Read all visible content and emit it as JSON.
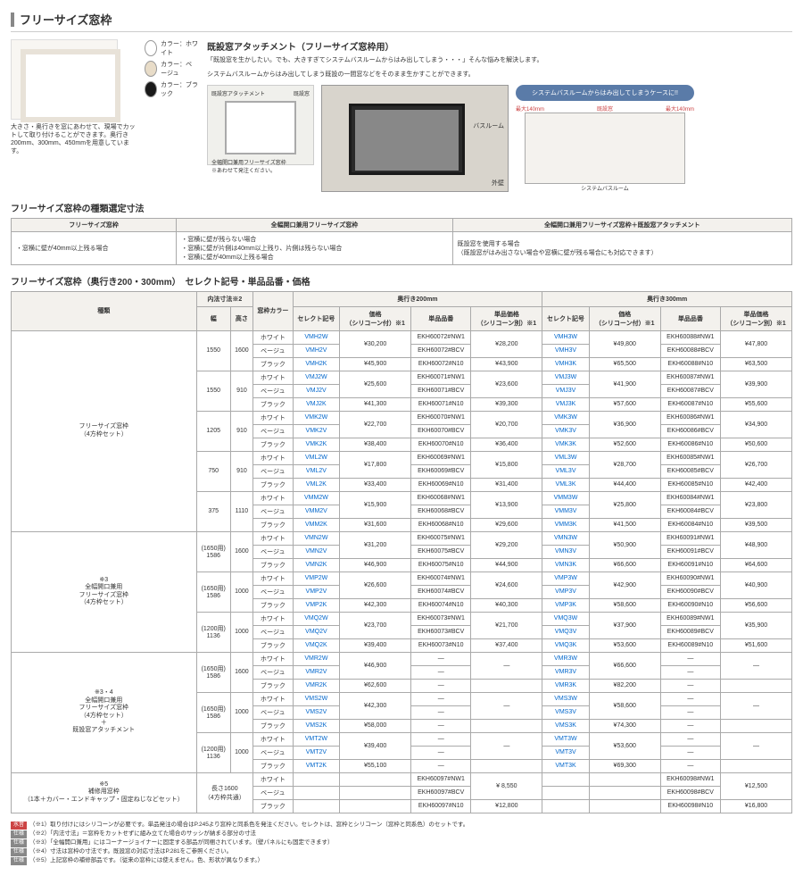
{
  "title": "フリーサイズ窓枠",
  "intro_left_text": "大きさ・奥行きを窓にあわせて、現場でカットして取り付けることができます。奥行き200mm、300mm、450mmを用意しています。",
  "swatches": [
    {
      "label": "カラー：ホワイト",
      "color": "#ffffff"
    },
    {
      "label": "カラー：ベージュ",
      "color": "#e8dcc8"
    },
    {
      "label": "カラー：ブラック",
      "color": "#1a1a1a"
    }
  ],
  "attach_title": "既設窓アタッチメント（フリーサイズ窓枠用）",
  "attach_text1": "「既設窓を生かしたい。でも、大きすぎてシステムバスルームからはみ出してしまう・・・」そんな悩みを解決します。",
  "attach_text2": "システムバスルームからはみ出してしまう既設の一間窓などをそのまま生かすことができます。",
  "diagram_labels": {
    "a": "既設窓アタッチメント",
    "b": "既設窓",
    "c": "全幅開口兼用フリーサイズ窓枠",
    "d": "※あわせて発注ください。"
  },
  "photo_labels": {
    "bath": "バスルーム",
    "wall": "外壁"
  },
  "callout_bubble": "システムバスルームからはみ出してしまうケースに!!",
  "callout_labels": {
    "l": "最大140mm",
    "r": "最大140mm",
    "m": "既設窓",
    "s": "システムバスルーム"
  },
  "sec1_title": "フリーサイズ窓枠の種類選定寸法",
  "t1": {
    "headers": [
      "フリーサイズ窓枠",
      "全幅開口兼用フリーサイズ窓枠",
      "全幅開口兼用フリーサイズ窓枠＋既設窓アタッチメント"
    ],
    "row": [
      "・窓横に壁が40mm以上残る場合",
      "・窓横に壁が残らない場合\n・窓横に壁が片側は40mm以上残り、片側は残らない場合\n・窓横に壁が40mm以上残る場合",
      "既設窓を使用する場合\n（既設窓がはみ出さない場合や窓横に壁が残る場合にも対応できます）"
    ]
  },
  "sec2_title": "フリーサイズ窓枠（奥行き200・300mm）　セレクト記号・単品品番・価格",
  "main_headers": {
    "type": "種類",
    "inner": "内法寸法※2",
    "width": "幅",
    "height": "高さ",
    "color": "窓枠カラー",
    "d200": "奥行き200mm",
    "d300": "奥行き300mm",
    "select": "セレクト記号",
    "price_si": "価格\n（シリコーン付）※1",
    "part": "単品品番",
    "part_price": "単品価格\n（シリコーン別）※1"
  },
  "groups": [
    {
      "label": "フリーサイズ窓枠\n（4方枠セット）",
      "sizes": [
        {
          "w": "1550",
          "h": "1600",
          "rows": [
            {
              "color": "ホワイト",
              "s200": "VMH2W",
              "p200": "¥30,200",
              "pn200": "EKH60072#NW1",
              "pp200": "¥28,200",
              "s300": "VMH3W",
              "p300": "¥49,800",
              "pn300": "EKH60088#NW1",
              "pp300": "¥47,800"
            },
            {
              "color": "ベージュ",
              "s200": "VMH2V",
              "p200": "",
              "pn200": "EKH60072#BCV",
              "pp200": "",
              "s300": "VMH3V",
              "p300": "",
              "pn300": "EKH60088#BCV",
              "pp300": ""
            },
            {
              "color": "ブラック",
              "s200": "VMH2K",
              "p200": "¥45,900",
              "pn200": "EKH60072#N10",
              "pp200": "¥43,900",
              "s300": "VMH3K",
              "p300": "¥65,500",
              "pn300": "EKH60088#N10",
              "pp300": "¥63,500"
            }
          ]
        },
        {
          "w": "1550",
          "h": "910",
          "rows": [
            {
              "color": "ホワイト",
              "s200": "VMJ2W",
              "p200": "¥25,600",
              "pn200": "EKH60071#NW1",
              "pp200": "¥23,600",
              "s300": "VMJ3W",
              "p300": "¥41,900",
              "pn300": "EKH60087#NW1",
              "pp300": "¥39,900"
            },
            {
              "color": "ベージュ",
              "s200": "VMJ2V",
              "p200": "",
              "pn200": "EKH60071#BCV",
              "pp200": "",
              "s300": "VMJ3V",
              "p300": "",
              "pn300": "EKH60087#BCV",
              "pp300": ""
            },
            {
              "color": "ブラック",
              "s200": "VMJ2K",
              "p200": "¥41,300",
              "pn200": "EKH60071#N10",
              "pp200": "¥39,300",
              "s300": "VMJ3K",
              "p300": "¥57,600",
              "pn300": "EKH60087#N10",
              "pp300": "¥55,600"
            }
          ]
        },
        {
          "w": "1205",
          "h": "910",
          "rows": [
            {
              "color": "ホワイト",
              "s200": "VMK2W",
              "p200": "¥22,700",
              "pn200": "EKH60070#NW1",
              "pp200": "¥20,700",
              "s300": "VMK3W",
              "p300": "¥36,900",
              "pn300": "EKH60086#NW1",
              "pp300": "¥34,900"
            },
            {
              "color": "ベージュ",
              "s200": "VMK2V",
              "p200": "",
              "pn200": "EKH60070#BCV",
              "pp200": "",
              "s300": "VMK3V",
              "p300": "",
              "pn300": "EKH60086#BCV",
              "pp300": ""
            },
            {
              "color": "ブラック",
              "s200": "VMK2K",
              "p200": "¥38,400",
              "pn200": "EKH60070#N10",
              "pp200": "¥36,400",
              "s300": "VMK3K",
              "p300": "¥52,600",
              "pn300": "EKH60086#N10",
              "pp300": "¥50,600"
            }
          ]
        },
        {
          "w": "750",
          "h": "910",
          "rows": [
            {
              "color": "ホワイト",
              "s200": "VML2W",
              "p200": "¥17,800",
              "pn200": "EKH60069#NW1",
              "pp200": "¥15,800",
              "s300": "VML3W",
              "p300": "¥28,700",
              "pn300": "EKH60085#NW1",
              "pp300": "¥26,700"
            },
            {
              "color": "ベージュ",
              "s200": "VML2V",
              "p200": "",
              "pn200": "EKH60069#BCV",
              "pp200": "",
              "s300": "VML3V",
              "p300": "",
              "pn300": "EKH60085#BCV",
              "pp300": ""
            },
            {
              "color": "ブラック",
              "s200": "VML2K",
              "p200": "¥33,400",
              "pn200": "EKH60069#N10",
              "pp200": "¥31,400",
              "s300": "VML3K",
              "p300": "¥44,400",
              "pn300": "EKH60085#N10",
              "pp300": "¥42,400"
            }
          ]
        },
        {
          "w": "375",
          "h": "1110",
          "rows": [
            {
              "color": "ホワイト",
              "s200": "VMM2W",
              "p200": "¥15,900",
              "pn200": "EKH60068#NW1",
              "pp200": "¥13,900",
              "s300": "VMM3W",
              "p300": "¥25,800",
              "pn300": "EKH60084#NW1",
              "pp300": "¥23,800"
            },
            {
              "color": "ベージュ",
              "s200": "VMM2V",
              "p200": "",
              "pn200": "EKH60068#BCV",
              "pp200": "",
              "s300": "VMM3V",
              "p300": "",
              "pn300": "EKH60084#BCV",
              "pp300": ""
            },
            {
              "color": "ブラック",
              "s200": "VMM2K",
              "p200": "¥31,600",
              "pn200": "EKH60068#N10",
              "pp200": "¥29,600",
              "s300": "VMM3K",
              "p300": "¥41,500",
              "pn300": "EKH60084#N10",
              "pp300": "¥39,500"
            }
          ]
        }
      ]
    },
    {
      "label": "※3\n全幅開口兼用\nフリーサイズ窓枠\n（4方枠セット）",
      "sizes": [
        {
          "w": "(1650用)\n1586",
          "h": "1600",
          "rows": [
            {
              "color": "ホワイト",
              "s200": "VMN2W",
              "p200": "¥31,200",
              "pn200": "EKH60075#NW1",
              "pp200": "¥29,200",
              "s300": "VMN3W",
              "p300": "¥50,900",
              "pn300": "EKH60091#NW1",
              "pp300": "¥48,900"
            },
            {
              "color": "ベージュ",
              "s200": "VMN2V",
              "p200": "",
              "pn200": "EKH60075#BCV",
              "pp200": "",
              "s300": "VMN3V",
              "p300": "",
              "pn300": "EKH60091#BCV",
              "pp300": ""
            },
            {
              "color": "ブラック",
              "s200": "VMN2K",
              "p200": "¥46,900",
              "pn200": "EKH60075#N10",
              "pp200": "¥44,900",
              "s300": "VMN3K",
              "p300": "¥66,600",
              "pn300": "EKH60091#N10",
              "pp300": "¥64,600"
            }
          ]
        },
        {
          "w": "(1650用)\n1586",
          "h": "1000",
          "rows": [
            {
              "color": "ホワイト",
              "s200": "VMP2W",
              "p200": "¥26,600",
              "pn200": "EKH60074#NW1",
              "pp200": "¥24,600",
              "s300": "VMP3W",
              "p300": "¥42,900",
              "pn300": "EKH60090#NW1",
              "pp300": "¥40,900"
            },
            {
              "color": "ベージュ",
              "s200": "VMP2V",
              "p200": "",
              "pn200": "EKH60074#BCV",
              "pp200": "",
              "s300": "VMP3V",
              "p300": "",
              "pn300": "EKH60090#BCV",
              "pp300": ""
            },
            {
              "color": "ブラック",
              "s200": "VMP2K",
              "p200": "¥42,300",
              "pn200": "EKH60074#N10",
              "pp200": "¥40,300",
              "s300": "VMP3K",
              "p300": "¥58,600",
              "pn300": "EKH60090#N10",
              "pp300": "¥56,600"
            }
          ]
        },
        {
          "w": "(1200用)\n1136",
          "h": "1000",
          "rows": [
            {
              "color": "ホワイト",
              "s200": "VMQ2W",
              "p200": "¥23,700",
              "pn200": "EKH60073#NW1",
              "pp200": "¥21,700",
              "s300": "VMQ3W",
              "p300": "¥37,900",
              "pn300": "EKH60089#NW1",
              "pp300": "¥35,900"
            },
            {
              "color": "ベージュ",
              "s200": "VMQ2V",
              "p200": "",
              "pn200": "EKH60073#BCV",
              "pp200": "",
              "s300": "VMQ3V",
              "p300": "",
              "pn300": "EKH60089#BCV",
              "pp300": ""
            },
            {
              "color": "ブラック",
              "s200": "VMQ2K",
              "p200": "¥39,400",
              "pn200": "EKH60073#N10",
              "pp200": "¥37,400",
              "s300": "VMQ3K",
              "p300": "¥53,600",
              "pn300": "EKH60089#N10",
              "pp300": "¥51,600"
            }
          ]
        }
      ]
    },
    {
      "label": "※3・4\n全幅開口兼用\nフリーサイズ窓枠\n（4方枠セット）\n＋\n既設窓アタッチメント",
      "sizes": [
        {
          "w": "(1650用)\n1586",
          "h": "1600",
          "rows": [
            {
              "color": "ホワイト",
              "s200": "VMR2W",
              "p200": "¥46,900",
              "pn200": "—",
              "pp200": "—",
              "s300": "VMR3W",
              "p300": "¥66,600",
              "pn300": "—",
              "pp300": "—"
            },
            {
              "color": "ベージュ",
              "s200": "VMR2V",
              "p200": "",
              "pn200": "",
              "pp200": "",
              "s300": "VMR3V",
              "p300": "",
              "pn300": "",
              "pp300": ""
            },
            {
              "color": "ブラック",
              "s200": "VMR2K",
              "p200": "¥62,600",
              "pn200": "",
              "pp200": "",
              "s300": "VMR3K",
              "p300": "¥82,200",
              "pn300": "",
              "pp300": ""
            }
          ]
        },
        {
          "w": "(1650用)\n1586",
          "h": "1000",
          "rows": [
            {
              "color": "ホワイト",
              "s200": "VMS2W",
              "p200": "¥42,300",
              "pn200": "—",
              "pp200": "—",
              "s300": "VMS3W",
              "p300": "¥58,600",
              "pn300": "—",
              "pp300": "—"
            },
            {
              "color": "ベージュ",
              "s200": "VMS2V",
              "p200": "",
              "pn200": "",
              "pp200": "",
              "s300": "VMS3V",
              "p300": "",
              "pn300": "",
              "pp300": ""
            },
            {
              "color": "ブラック",
              "s200": "VMS2K",
              "p200": "¥58,000",
              "pn200": "",
              "pp200": "",
              "s300": "VMS3K",
              "p300": "¥74,300",
              "pn300": "",
              "pp300": ""
            }
          ]
        },
        {
          "w": "(1200用)\n1136",
          "h": "1000",
          "rows": [
            {
              "color": "ホワイト",
              "s200": "VMT2W",
              "p200": "¥39,400",
              "pn200": "—",
              "pp200": "—",
              "s300": "VMT3W",
              "p300": "¥53,600",
              "pn300": "—",
              "pp300": "—"
            },
            {
              "color": "ベージュ",
              "s200": "VMT2V",
              "p200": "",
              "pn200": "",
              "pp200": "",
              "s300": "VMT3V",
              "p300": "",
              "pn300": "",
              "pp300": ""
            },
            {
              "color": "ブラック",
              "s200": "VMT2K",
              "p200": "¥55,100",
              "pn200": "",
              "pp200": "",
              "s300": "VMT3K",
              "p300": "¥69,300",
              "pn300": "",
              "pp300": ""
            }
          ]
        }
      ]
    }
  ],
  "spare": {
    "label": "※5\n補修用窓枠\n（1本＋カバー・エンドキャップ・固定ねじなどセット）",
    "w": "長さ1600\n（4方枠共通）",
    "rows": [
      {
        "color": "ホワイト",
        "pn200": "EKH60097#NW1",
        "pp200": "¥ 8,550",
        "pn300": "EKH60098#NW1",
        "pp300": "¥12,500"
      },
      {
        "color": "ベージュ",
        "pn200": "EKH60097#BCV",
        "pp200": "",
        "pn300": "EKH60098#BCV",
        "pp300": ""
      },
      {
        "color": "ブラック",
        "pn200": "EKH60097#N10",
        "pp200": "¥12,800",
        "pn300": "EKH60098#N10",
        "pp300": "¥16,800"
      }
    ]
  },
  "notes": [
    {
      "tag": "水音",
      "cls": "",
      "text": "（※1）取り付けにはシリコーンが必要です。単品発注の場合はP.245より窓枠と同系色を発注ください。セレクトは、窓枠とシリコーン（窓枠と同系色）のセットです。"
    },
    {
      "tag": "仕様",
      "cls": "g",
      "text": "（※2）「内法寸法」＝窓枠をカットせずに組み立てた場合のサッシが納まる部分の寸法"
    },
    {
      "tag": "仕様",
      "cls": "g",
      "text": "（※3）「全幅開口兼用」にはコーナージョイナーに固定する部品が同梱されています。（壁パネルにも固定できます）"
    },
    {
      "tag": "仕様",
      "cls": "g",
      "text": "（※4）寸法は窓枠の寸法です。既設窓の対応寸法はP.281をご参照ください。"
    },
    {
      "tag": "仕様",
      "cls": "g",
      "text": "（※5）上記窓枠の補修部品です。（従来の窓枠には使えません。色、形状が異なります。）"
    }
  ]
}
